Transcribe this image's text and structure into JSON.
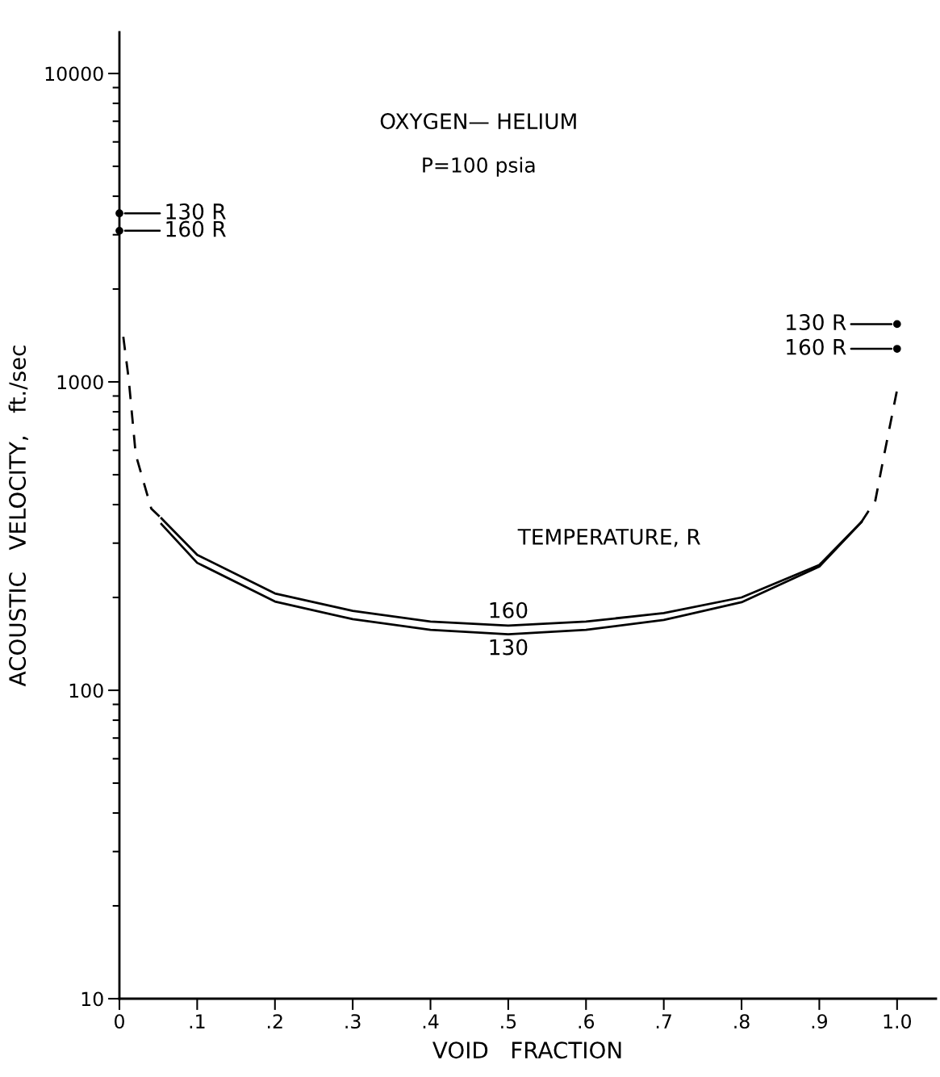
{
  "chart_data": {
    "type": "line",
    "title": "OXYGEN— HELIUM",
    "subtitle": "P=100 psia",
    "xlabel": "VOID   FRACTION",
    "ylabel": "ACOUSTIC   VELOCITY,   ft./sec",
    "log": "y",
    "xlim": [
      0,
      1.05
    ],
    "ylim": [
      10,
      13600
    ],
    "xticks": [
      {
        "value": 0,
        "label": "0"
      },
      {
        "value": 0.1,
        "label": ".1"
      },
      {
        "value": 0.2,
        "label": ".2"
      },
      {
        "value": 0.3,
        "label": ".3"
      },
      {
        "value": 0.4,
        "label": ".4"
      },
      {
        "value": 0.5,
        "label": ".5"
      },
      {
        "value": 0.6,
        "label": ".6"
      },
      {
        "value": 0.7,
        "label": ".7"
      },
      {
        "value": 0.8,
        "label": ".8"
      },
      {
        "value": 0.9,
        "label": ".9"
      },
      {
        "value": 1.0,
        "label": "1.0"
      }
    ],
    "yticks": [
      10,
      100,
      1000,
      10000
    ],
    "grid": false,
    "legend": false,
    "series": [
      {
        "name": "160",
        "color": "#000000",
        "line_style": "solid",
        "x": [
          0.054,
          0.1,
          0.2,
          0.3,
          0.4,
          0.5,
          0.6,
          0.7,
          0.8,
          0.9,
          0.954
        ],
        "values": [
          361,
          275,
          206,
          181,
          167,
          162,
          167,
          178,
          200,
          255,
          351
        ]
      },
      {
        "name": "130",
        "color": "#000000",
        "line_style": "solid",
        "x": [
          0.054,
          0.1,
          0.2,
          0.3,
          0.4,
          0.5,
          0.6,
          0.7,
          0.8,
          0.9,
          0.954
        ],
        "values": [
          346,
          259,
          194,
          170,
          157,
          152,
          157,
          169,
          193,
          252,
          351
        ]
      },
      {
        "color": "#000000",
        "line_style": "dashed",
        "x": [
          0.005,
          0.012,
          0.021,
          0.041,
          0.054
        ],
        "values": [
          1400,
          1018,
          581,
          388,
          361
        ]
      },
      {
        "color": "#000000",
        "line_style": "dashed",
        "x": [
          0.954,
          0.972,
          0.982,
          1.0
        ],
        "values": [
          351,
          412,
          557,
          942
        ]
      },
      {
        "type": "scatter",
        "color": "#000000",
        "marker": "circle",
        "x": [
          0,
          0,
          1.0,
          1.0
        ],
        "values": [
          3520,
          3090,
          1540,
          1280
        ]
      }
    ],
    "annotations": [
      "130 R",
      "160 R",
      "130 R",
      "160 R",
      "TEMPERATURE, R"
    ]
  }
}
